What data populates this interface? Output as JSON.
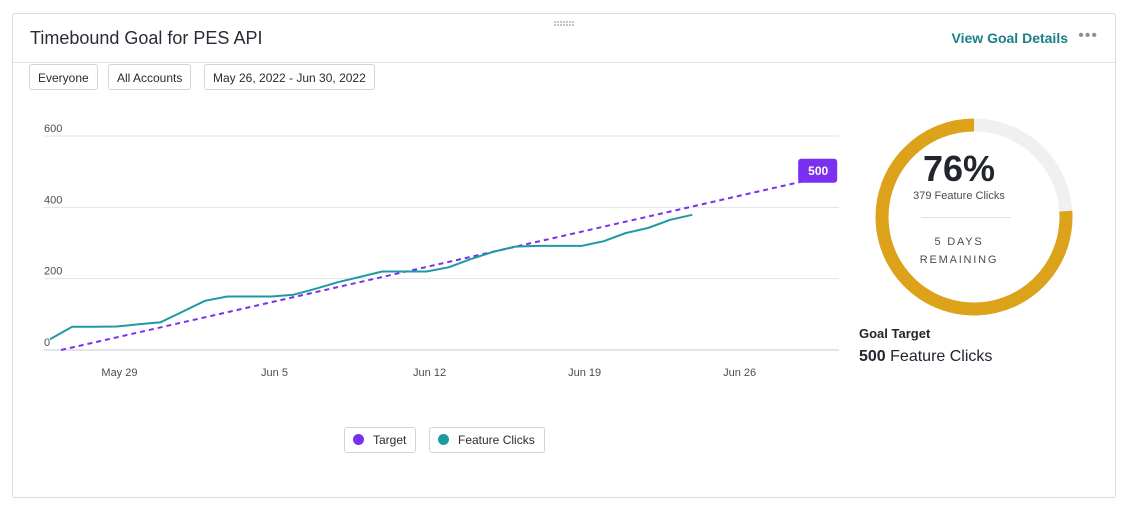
{
  "header": {
    "title": "Timebound Goal for PES API",
    "view_details": "View Goal Details",
    "more_glyph": "•••",
    "drag_glyph": "⠿⠿⠿"
  },
  "filters": [
    {
      "label": "Everyone"
    },
    {
      "label": "All Accounts"
    },
    {
      "label": "May 26, 2022 - Jun 30, 2022"
    }
  ],
  "chart_data": {
    "type": "line",
    "ylim": [
      0,
      600
    ],
    "yticks": [
      0,
      200,
      400,
      600
    ],
    "xticks": [
      {
        "label": "May 29",
        "day": 3
      },
      {
        "label": "Jun 5",
        "day": 10
      },
      {
        "label": "Jun 12",
        "day": 17
      },
      {
        "label": "Jun 19",
        "day": 24
      },
      {
        "label": "Jun 26",
        "day": 31
      }
    ],
    "x_start": "2022-05-26",
    "x_end": "2022-06-30",
    "target_label": "500",
    "series": [
      {
        "name": "Target",
        "color": "#7b2ff0",
        "style": "dashed",
        "points": [
          [
            0.5,
            0
          ],
          [
            34.5,
            480
          ]
        ]
      },
      {
        "name": "Feature Clicks",
        "color": "#1f9aa3",
        "style": "solid",
        "points": [
          [
            0,
            30
          ],
          [
            1,
            65
          ],
          [
            2,
            65
          ],
          [
            3,
            66
          ],
          [
            4,
            72
          ],
          [
            5,
            78
          ],
          [
            6,
            108
          ],
          [
            7,
            138
          ],
          [
            8,
            150
          ],
          [
            9,
            150
          ],
          [
            10,
            150
          ],
          [
            11,
            155
          ],
          [
            12,
            172
          ],
          [
            13,
            190
          ],
          [
            14,
            205
          ],
          [
            15,
            220
          ],
          [
            16,
            220
          ],
          [
            17,
            220
          ],
          [
            18,
            232
          ],
          [
            19,
            255
          ],
          [
            20,
            275
          ],
          [
            21,
            290
          ],
          [
            22,
            292
          ],
          [
            23,
            292
          ],
          [
            24,
            292
          ],
          [
            25,
            305
          ],
          [
            26,
            328
          ],
          [
            27,
            342
          ],
          [
            28,
            365
          ],
          [
            29,
            379
          ]
        ]
      }
    ]
  },
  "legend": [
    {
      "label": "Target",
      "color": "#7b2ff0"
    },
    {
      "label": "Feature Clicks",
      "color": "#1f9aa3"
    }
  ],
  "gauge": {
    "percent_text": "76%",
    "progress": 0.76,
    "clicks_text": "379 Feature Clicks",
    "remaining_line1": "5 DAYS",
    "remaining_line2": "REMAINING",
    "fill_color": "#dba21a",
    "track_color": "#f0f0f2"
  },
  "goal": {
    "label": "Goal Target",
    "value": "500",
    "unit": "Feature Clicks"
  }
}
